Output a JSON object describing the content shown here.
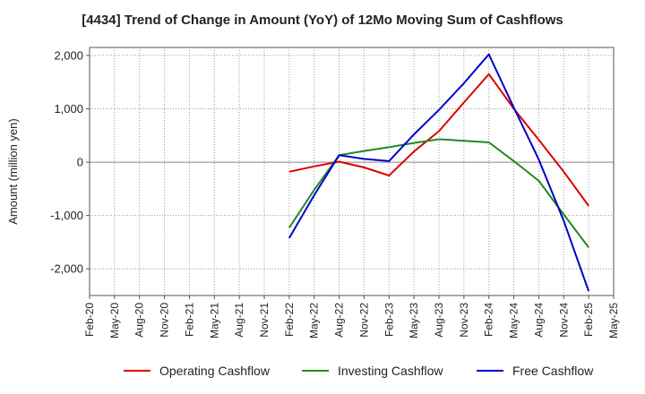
{
  "chart_data": {
    "type": "line",
    "title": "[4434]  Trend of Change in Amount (YoY) of 12Mo Moving Sum of Cashflows",
    "xlabel": "",
    "ylabel": "Amount (million yen)",
    "ylim": [
      -2500,
      2150
    ],
    "yticks": [
      2000,
      1000,
      0,
      -1000,
      -2000
    ],
    "ytick_labels": [
      "2,000",
      "1,000",
      "0",
      "-1,000",
      "-2,000"
    ],
    "categories": [
      "Feb-20",
      "May-20",
      "Aug-20",
      "Nov-20",
      "Feb-21",
      "May-21",
      "Aug-21",
      "Nov-21",
      "Feb-22",
      "May-22",
      "Aug-22",
      "Nov-22",
      "Feb-23",
      "May-23",
      "Aug-23",
      "Nov-23",
      "Feb-24",
      "May-24",
      "Aug-24",
      "Nov-24",
      "Feb-25",
      "May-25"
    ],
    "grid": true,
    "legend_position": "bottom",
    "series": [
      {
        "name": "Operating Cashflow",
        "color": "#dd0000",
        "values": [
          null,
          null,
          null,
          null,
          null,
          null,
          null,
          null,
          -180,
          -80,
          10,
          -100,
          -250,
          200,
          580,
          1120,
          1650,
          1000,
          420,
          -180,
          -820,
          null
        ]
      },
      {
        "name": "Investing Cashflow",
        "color": "#228822",
        "values": [
          null,
          null,
          null,
          null,
          null,
          null,
          null,
          null,
          -1230,
          -520,
          130,
          210,
          280,
          360,
          430,
          400,
          370,
          20,
          -350,
          -980,
          -1600,
          null
        ]
      },
      {
        "name": "Free Cashflow",
        "color": "#0000cc",
        "values": [
          null,
          null,
          null,
          null,
          null,
          null,
          null,
          null,
          -1420,
          -620,
          130,
          60,
          20,
          520,
          980,
          1480,
          2020,
          1020,
          50,
          -1100,
          -2420,
          null
        ]
      }
    ]
  }
}
